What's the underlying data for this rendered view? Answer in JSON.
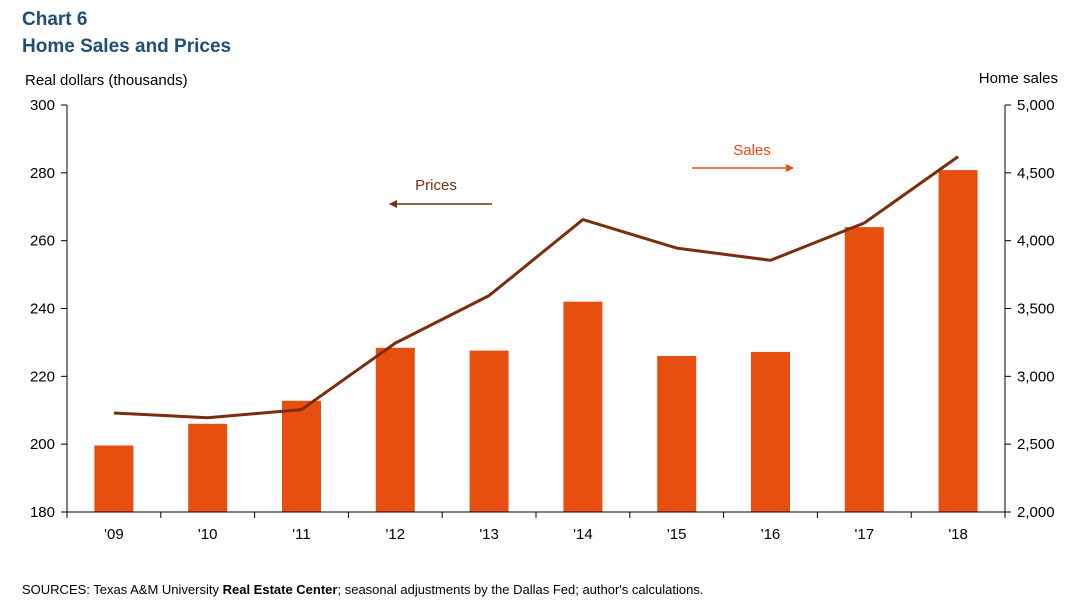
{
  "header": {
    "chart_number": "Chart 6",
    "title": "Home Sales and Prices"
  },
  "source": {
    "prefix": "SOURCES:  Texas A&M University ",
    "emphasis": "Real Estate Center",
    "suffix": "; seasonal adjustments by the Dallas Fed; author's calculations."
  },
  "colors": {
    "bar": "#e84e0f",
    "line": "#7a2e0e",
    "axis": "#000000"
  },
  "chart_data": {
    "type": "bar",
    "title": "Home Sales and Prices",
    "categories": [
      "'09",
      "'10",
      "'11",
      "'12",
      "'13",
      "'14",
      "'15",
      "'16",
      "'17",
      "'18"
    ],
    "left_axis": {
      "label": "Real dollars  (thousands)",
      "range": [
        180,
        300
      ],
      "ticks": [
        "180",
        "200",
        "220",
        "240",
        "260",
        "280",
        "300"
      ],
      "tick_values": [
        180,
        200,
        220,
        240,
        260,
        280,
        300
      ]
    },
    "right_axis": {
      "label": "Home  sales",
      "range": [
        2000,
        5000
      ],
      "ticks": [
        "2,000",
        "2,500",
        "3,000",
        "3,500",
        "4,000",
        "4,500",
        "5,000"
      ],
      "tick_values": [
        2000,
        2500,
        3000,
        3500,
        4000,
        4500,
        5000
      ]
    },
    "series": [
      {
        "name": "Sales",
        "type": "bar",
        "axis": "right",
        "values": [
          2490,
          2650,
          2820,
          3210,
          3190,
          3550,
          3150,
          3180,
          4100,
          4520
        ]
      },
      {
        "name": "Prices",
        "type": "line",
        "axis": "left",
        "values": [
          209.2,
          207.8,
          210.2,
          229.8,
          243.8,
          266.2,
          257.8,
          254.2,
          265.2,
          284.8
        ]
      }
    ],
    "annotations": [
      {
        "label": "Sales",
        "arrow": "right"
      },
      {
        "label": "Prices",
        "arrow": "left"
      }
    ]
  }
}
